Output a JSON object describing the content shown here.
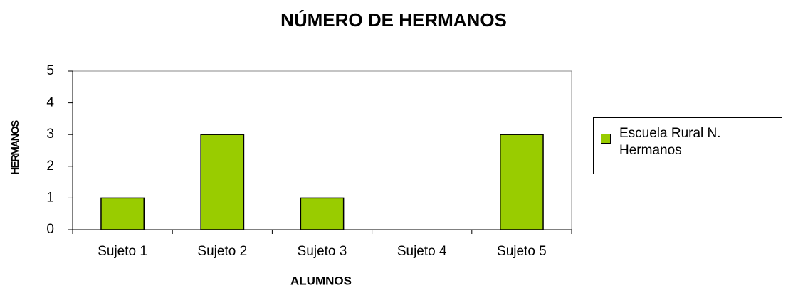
{
  "chart_data": {
    "type": "bar",
    "title": "NÚMERO DE HERMANOS",
    "x_label": "ALUMNOS",
    "y_label": "HERMANOS",
    "categories": [
      "Sujeto 1",
      "Sujeto 2",
      "Sujeto 3",
      "Sujeto 4",
      "Sujeto 5"
    ],
    "series": [
      {
        "name": "Escuela Rural N. Hermanos",
        "color": "#99cc00",
        "values": [
          1,
          3,
          1,
          0,
          3
        ]
      }
    ],
    "ylim": [
      0,
      5
    ],
    "yticks": [
      0,
      1,
      2,
      3,
      4,
      5
    ],
    "grid": false,
    "legend": "right"
  }
}
